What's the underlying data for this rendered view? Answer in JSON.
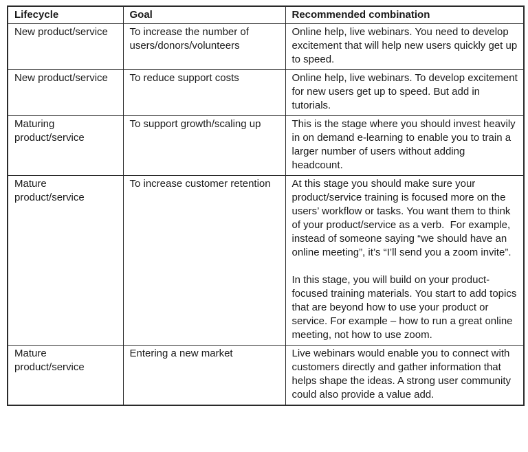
{
  "table": {
    "headers": [
      "Lifecycle",
      "Goal",
      "Recommended combination"
    ],
    "rows": [
      {
        "lifecycle": "New product/service",
        "goal": "To increase the number of users/donors/volunteers",
        "recommendation": "Online help, live webinars. You need to develop excitement that will help new users quickly get up to speed."
      },
      {
        "lifecycle": "New product/service",
        "goal": "To reduce support costs",
        "recommendation": "Online help, live webinars. To develop excitement for new users get up to speed. But add in tutorials."
      },
      {
        "lifecycle": "Maturing product/service",
        "goal": "To support growth/scaling up",
        "recommendation": "This is the stage where you should invest heavily in on demand e-learning to enable you to train a larger number of users without adding headcount."
      },
      {
        "lifecycle": "Mature product/service",
        "goal": "To increase customer retention",
        "recommendation": "At this stage you should make sure your product/service training is focused more on the users’ workflow or tasks. You want them to think of your product/service as a verb.  For example, instead of someone saying “we should have an online meeting”, it’s “I’ll send you a zoom invite”.\n\nIn this stage, you will build on your product-focused training materials. You start to add topics that are beyond how to use your product or service. For example – how to run a great online meeting, not how to use zoom."
      },
      {
        "lifecycle": "Mature product/service",
        "goal": "Entering a new market",
        "recommendation": "Live webinars would enable you to connect with customers directly and gather information that helps shape the ideas. A strong user community could also provide a value add."
      }
    ]
  }
}
